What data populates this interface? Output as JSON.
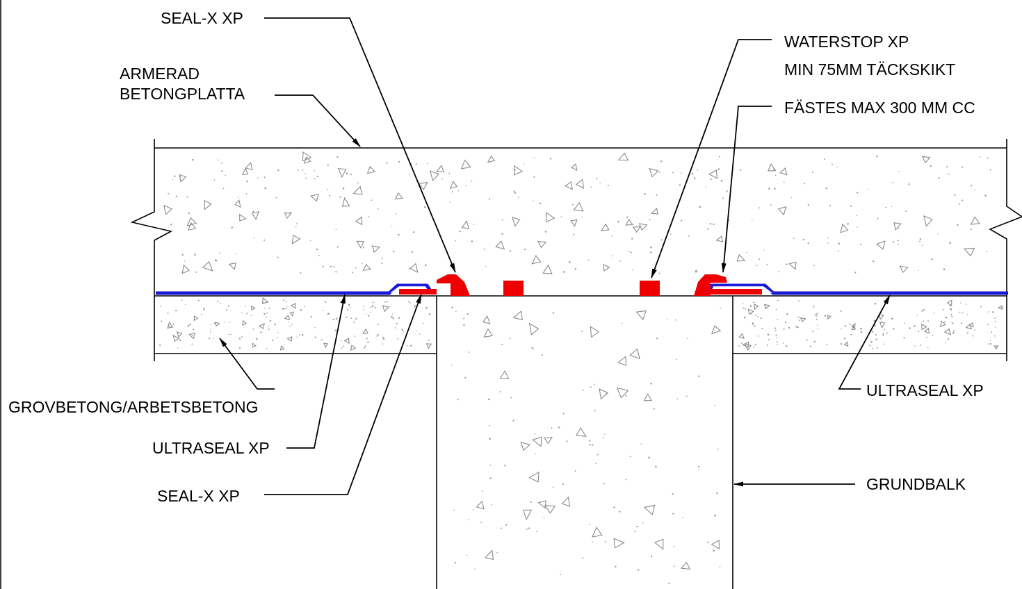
{
  "labels": {
    "seal_x_top": "SEAL-X XP",
    "armerad_line1": "ARMERAD",
    "armerad_line2": "BETONGPLATTA",
    "waterstop": "WATERSTOP XP",
    "tackskikt": "MIN 75MM TÄCKSKIKT",
    "fastes": "FÄSTES MAX 300 MM CC",
    "grovbetong": "GROVBETONG/ARBETSBETONG",
    "ultraseal_left": "ULTRASEAL XP",
    "seal_x_bottom": "SEAL-X XP",
    "ultraseal_right": "ULTRASEAL XP",
    "grundbalk": "GRUNDBALK"
  },
  "colors": {
    "membrane": "#1a1ad6",
    "sealant": "#ee0000",
    "linework": "#000000",
    "aggregate": "#8a8a8a"
  },
  "components": [
    {
      "name": "armerad-betongplatta",
      "material": "reinforced concrete slab"
    },
    {
      "name": "grovbetong",
      "material": "lean concrete"
    },
    {
      "name": "grundbalk",
      "material": "concrete ground beam"
    },
    {
      "name": "ultraseal-membrane",
      "material": "membrane"
    },
    {
      "name": "seal-x-sealant",
      "material": "sealant"
    },
    {
      "name": "waterstop-strips",
      "material": "waterstop"
    }
  ]
}
